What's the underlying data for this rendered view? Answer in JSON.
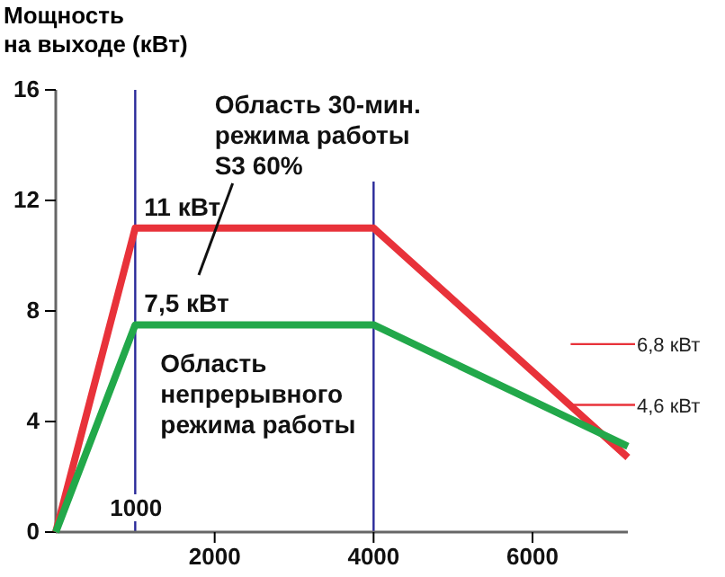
{
  "chart_data": {
    "type": "line",
    "ylabel": "Мощность\nна выходе (кВт)",
    "x": [
      0,
      1000,
      4000,
      7200
    ],
    "series": [
      {
        "color": "#e8323a",
        "values": [
          0,
          11,
          11,
          2.7
        ]
      },
      {
        "color": "#22a84a",
        "values": [
          0,
          7.5,
          7.5,
          3.1
        ]
      }
    ],
    "xlim": [
      0,
      7200
    ],
    "xticks": [
      2000,
      4000,
      6000
    ],
    "ylim": [
      0,
      16
    ],
    "yticks": [
      0,
      4,
      8,
      12,
      16
    ],
    "grid": false,
    "marker": "none",
    "line_style": "solid",
    "ref_lines": [
      {
        "axis": "x",
        "value": 1000,
        "label": "1000",
        "color": "#2a2a9a"
      },
      {
        "axis": "x",
        "value": 4000,
        "color": "#2a2a9a"
      },
      {
        "axis": "y",
        "value": 6.8,
        "label": "6,8 кВт",
        "color": "#e8323a"
      },
      {
        "axis": "y",
        "value": 4.6,
        "label": "4,6 кВт",
        "color": "#e8323a"
      }
    ],
    "annotations": [
      {
        "text": "11 кВт",
        "x": 1000,
        "y": 11
      },
      {
        "text": "7,5 кВт",
        "x": 1000,
        "y": 7.5
      },
      "Область 30-мин.\nрежима работы\nS3 60%",
      "Область\nнепрерывного\nрежима работы"
    ]
  }
}
